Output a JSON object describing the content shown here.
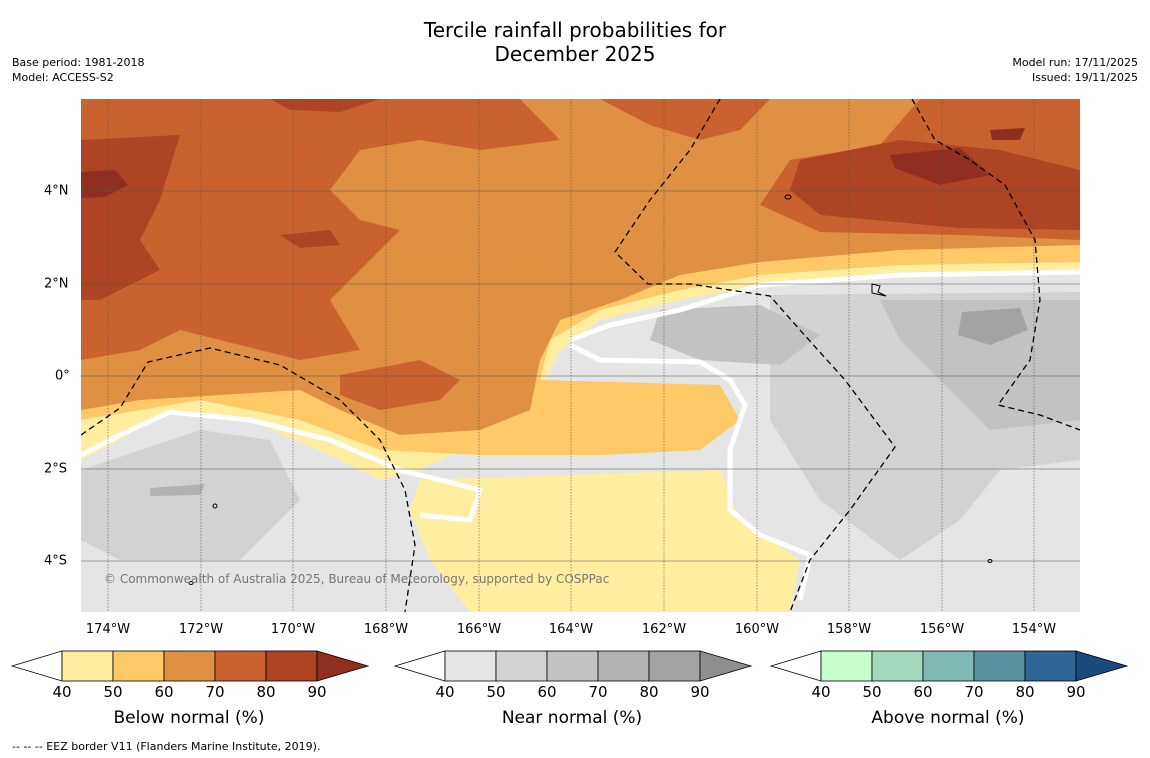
{
  "title_line1": "Tercile rainfall probabilities for",
  "title_line2": "December 2025",
  "base_period": "Base period: 1981-2018",
  "model": "Model: ACCESS-S2",
  "model_run": "Model run: 17/11/2025",
  "issued": "Issued: 19/11/2025",
  "copyright": "© Commonwealth of Australia 2025, Bureau of Meteorology, supported by COSPPac",
  "footer": "--  --  -- EEZ border V11 (Flanders Marine Institute, 2019).",
  "lat_labels": [
    "4°N",
    "2°N",
    "0°",
    "2°S",
    "4°S"
  ],
  "lon_labels": [
    "174°W",
    "172°W",
    "170°W",
    "168°W",
    "166°W",
    "164°W",
    "162°W",
    "160°W",
    "158°W",
    "156°W",
    "154°W"
  ],
  "colorbars": [
    {
      "title": "Below normal (%)",
      "ticks": [
        "40",
        "50",
        "60",
        "70",
        "80",
        "90"
      ],
      "colors": [
        "#ffeda0",
        "#fec966",
        "#df9042",
        "#c9622f",
        "#ad4423"
      ],
      "over": "#8f2f1f"
    },
    {
      "title": "Near normal (%)",
      "ticks": [
        "40",
        "50",
        "60",
        "70",
        "80",
        "90"
      ],
      "colors": [
        "#e5e5e5",
        "#d2d2d2",
        "#c2c2c2",
        "#b2b2b2",
        "#a3a3a3"
      ],
      "over": "#8e8e8e"
    },
    {
      "title": "Above normal (%)",
      "ticks": [
        "40",
        "50",
        "60",
        "70",
        "80",
        "90"
      ],
      "colors": [
        "#c7fccc",
        "#a2d9bd",
        "#80b8b3",
        "#5a919e",
        "#2f6597"
      ],
      "over": "#1a4a7d"
    }
  ]
}
